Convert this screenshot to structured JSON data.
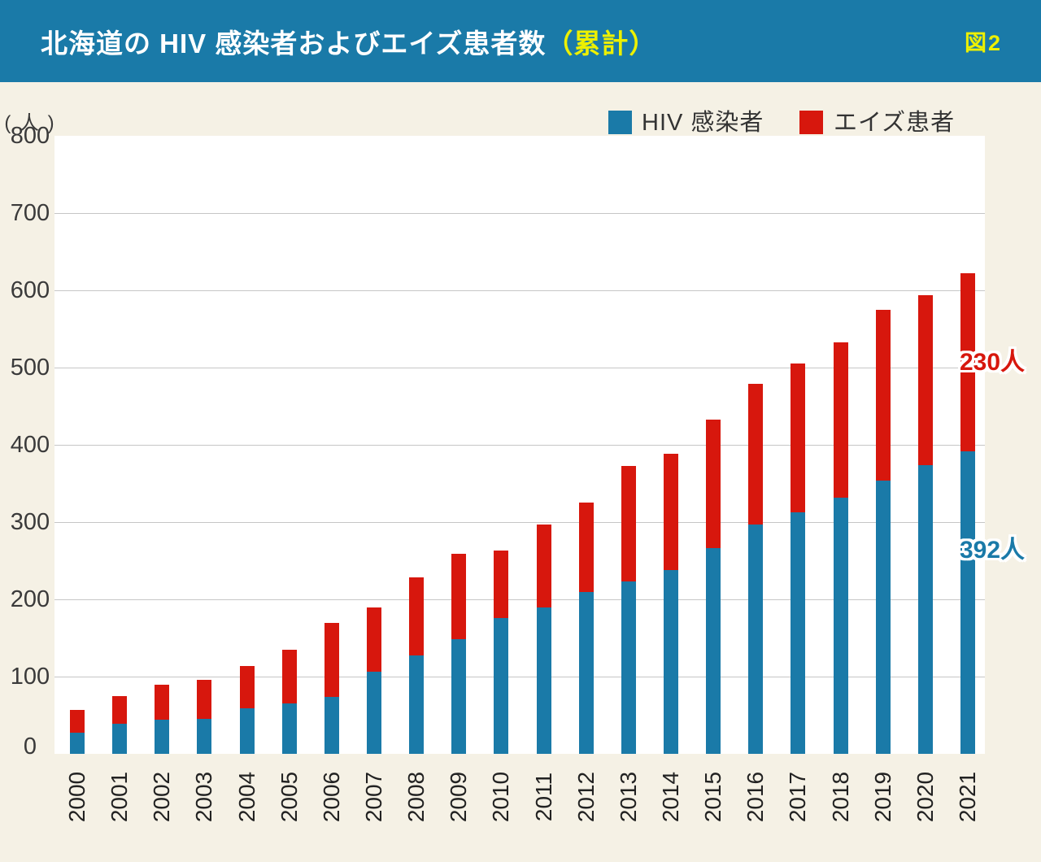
{
  "header": {
    "title_main": "北海道の HIV 感染者およびエイズ患者数",
    "title_accent": "（累計）",
    "figure_label": "図2"
  },
  "colors": {
    "header_bg": "#1a7aa8",
    "hiv_blue": "#1a7aa8",
    "aids_red": "#d7170d",
    "accent_yellow": "#edf000",
    "page_bg": "#f5f1e5",
    "plot_bg": "#ffffff",
    "gridline": "#c6c6c6",
    "axis_text": "#3a3a3a"
  },
  "legend": {
    "items": [
      {
        "label": "HIV 感染者",
        "color": "#1a7aa8"
      },
      {
        "label": "エイズ患者",
        "color": "#d7170d"
      }
    ]
  },
  "y_axis": {
    "unit_label": "( 人 )",
    "ticks": [
      0,
      100,
      200,
      300,
      400,
      500,
      600,
      700,
      800
    ]
  },
  "annotations": [
    {
      "text": "230人",
      "series": "エイズ患者",
      "color": "#d7170d"
    },
    {
      "text": "392人",
      "series": "HIV 感染者",
      "color": "#1a7aa8"
    }
  ],
  "chart_data": {
    "type": "bar",
    "stacked": true,
    "title": "北海道の HIV 感染者およびエイズ患者数（累計）",
    "ylabel": "( 人 )",
    "ylim": [
      0,
      800
    ],
    "grid": true,
    "legend_position": "top-right",
    "categories": [
      "2000",
      "2001",
      "2002",
      "2003",
      "2004",
      "2005",
      "2006",
      "2007",
      "2008",
      "2009",
      "2010",
      "2011",
      "2012",
      "2013",
      "2014",
      "2015",
      "2016",
      "2017",
      "2018",
      "2019",
      "2020",
      "2021"
    ],
    "series": [
      {
        "name": "HIV 感染者",
        "color": "#1a7aa8",
        "values": [
          27,
          39,
          44,
          45,
          59,
          65,
          74,
          106,
          127,
          148,
          176,
          190,
          210,
          223,
          238,
          266,
          297,
          313,
          332,
          354,
          374,
          392
        ]
      },
      {
        "name": "エイズ患者",
        "color": "#d7170d",
        "values": [
          30,
          36,
          45,
          51,
          55,
          70,
          95,
          84,
          101,
          111,
          87,
          107,
          115,
          150,
          150,
          167,
          182,
          192,
          201,
          221,
          220,
          230
        ]
      }
    ],
    "totals": [
      57,
      75,
      89,
      96,
      114,
      135,
      169,
      190,
      228,
      259,
      263,
      297,
      325,
      373,
      388,
      433,
      479,
      505,
      533,
      575,
      594,
      622
    ]
  }
}
